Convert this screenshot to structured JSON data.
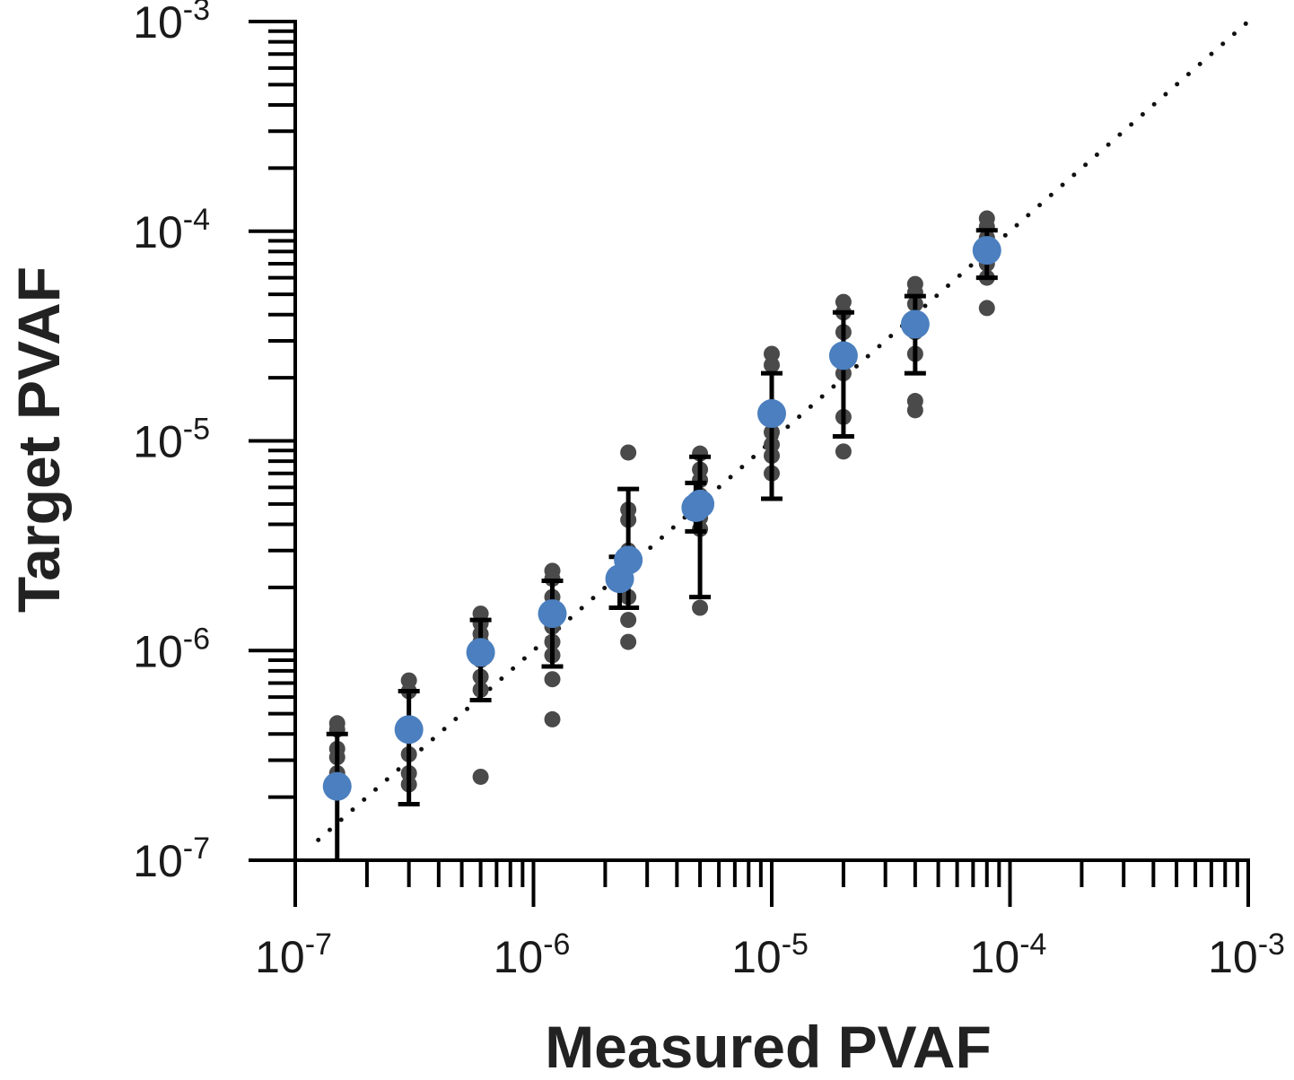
{
  "chart_data": {
    "type": "scatter",
    "title": "",
    "xlabel": "Measured PVAF",
    "ylabel": "Target PVAF",
    "x_scale": "log",
    "y_scale": "log",
    "xlim": [
      1e-07,
      0.001
    ],
    "ylim": [
      1e-07,
      0.001
    ],
    "grid": false,
    "x_ticks": [
      {
        "value": 1e-07,
        "base": "10",
        "exp": "-7"
      },
      {
        "value": 1e-06,
        "base": "10",
        "exp": "-6"
      },
      {
        "value": 1e-05,
        "base": "10",
        "exp": "-5"
      },
      {
        "value": 0.0001,
        "base": "10",
        "exp": "-4"
      },
      {
        "value": 0.001,
        "base": "10",
        "exp": "-3"
      }
    ],
    "y_ticks": [
      {
        "value": 1e-07,
        "base": "10",
        "exp": "-7"
      },
      {
        "value": 1e-06,
        "base": "10",
        "exp": "-6"
      },
      {
        "value": 1e-05,
        "base": "10",
        "exp": "-5"
      },
      {
        "value": 0.0001,
        "base": "10",
        "exp": "-4"
      },
      {
        "value": 0.001,
        "base": "10",
        "exp": "-3"
      }
    ],
    "identity_line": {
      "from": [
        1.25e-07,
        1.25e-07
      ],
      "to": [
        0.001,
        0.001
      ],
      "style": "dotted"
    },
    "colors": {
      "mean": "#4b7fbf",
      "replicate": "#4a4a4a",
      "error_bar": "#000000",
      "axis": "#000000",
      "identity_line": "#111111"
    },
    "series": [
      {
        "role": "replicates",
        "points": [
          {
            "x": 1.5e-07,
            "y": 4.5e-07
          },
          {
            "x": 1.5e-07,
            "y": 4.2e-07
          },
          {
            "x": 1.5e-07,
            "y": 3.4e-07
          },
          {
            "x": 1.5e-07,
            "y": 3.1e-07
          },
          {
            "x": 1.5e-07,
            "y": 2.6e-07
          },
          {
            "x": 3e-07,
            "y": 7.2e-07
          },
          {
            "x": 3e-07,
            "y": 6.4e-07
          },
          {
            "x": 3e-07,
            "y": 4.4e-07
          },
          {
            "x": 3e-07,
            "y": 3.2e-07
          },
          {
            "x": 3e-07,
            "y": 2.6e-07
          },
          {
            "x": 3e-07,
            "y": 2.3e-07
          },
          {
            "x": 6e-07,
            "y": 1.5e-06
          },
          {
            "x": 6e-07,
            "y": 1.35e-06
          },
          {
            "x": 6e-07,
            "y": 1.2e-06
          },
          {
            "x": 6e-07,
            "y": 1.1e-06
          },
          {
            "x": 6e-07,
            "y": 9e-07
          },
          {
            "x": 6e-07,
            "y": 7.5e-07
          },
          {
            "x": 6e-07,
            "y": 6.5e-07
          },
          {
            "x": 6e-07,
            "y": 2.5e-07
          },
          {
            "x": 1.2e-06,
            "y": 2.4e-06
          },
          {
            "x": 1.2e-06,
            "y": 2.2e-06
          },
          {
            "x": 1.2e-06,
            "y": 1.8e-06
          },
          {
            "x": 1.2e-06,
            "y": 1.3e-06
          },
          {
            "x": 1.2e-06,
            "y": 1.1e-06
          },
          {
            "x": 1.2e-06,
            "y": 9.5e-07
          },
          {
            "x": 1.2e-06,
            "y": 7.3e-07
          },
          {
            "x": 1.2e-06,
            "y": 4.7e-07
          },
          {
            "x": 2.5e-06,
            "y": 8.8e-06
          },
          {
            "x": 2.5e-06,
            "y": 4.7e-06
          },
          {
            "x": 2.5e-06,
            "y": 4.2e-06
          },
          {
            "x": 2.5e-06,
            "y": 3e-06
          },
          {
            "x": 2.5e-06,
            "y": 1.8e-06
          },
          {
            "x": 2.5e-06,
            "y": 1.4e-06
          },
          {
            "x": 2.5e-06,
            "y": 1.1e-06
          },
          {
            "x": 5e-06,
            "y": 8.7e-06
          },
          {
            "x": 5e-06,
            "y": 7.3e-06
          },
          {
            "x": 5e-06,
            "y": 6.5e-06
          },
          {
            "x": 5e-06,
            "y": 5.5e-06
          },
          {
            "x": 5e-06,
            "y": 4.3e-06
          },
          {
            "x": 5e-06,
            "y": 3.8e-06
          },
          {
            "x": 5e-06,
            "y": 1.6e-06
          },
          {
            "x": 1e-05,
            "y": 2.6e-05
          },
          {
            "x": 1e-05,
            "y": 2.3e-05
          },
          {
            "x": 1e-05,
            "y": 1.45e-05
          },
          {
            "x": 1e-05,
            "y": 1.1e-05
          },
          {
            "x": 1e-05,
            "y": 9.6e-06
          },
          {
            "x": 1e-05,
            "y": 8.5e-06
          },
          {
            "x": 1e-05,
            "y": 7e-06
          },
          {
            "x": 2e-05,
            "y": 4.6e-05
          },
          {
            "x": 2e-05,
            "y": 4.1e-05
          },
          {
            "x": 2e-05,
            "y": 3.3e-05
          },
          {
            "x": 2e-05,
            "y": 2.7e-05
          },
          {
            "x": 2e-05,
            "y": 2.1e-05
          },
          {
            "x": 2e-05,
            "y": 1.3e-05
          },
          {
            "x": 2e-05,
            "y": 8.9e-06
          },
          {
            "x": 4e-05,
            "y": 5.6e-05
          },
          {
            "x": 4e-05,
            "y": 5.1e-05
          },
          {
            "x": 4e-05,
            "y": 4.5e-05
          },
          {
            "x": 4e-05,
            "y": 3.3e-05
          },
          {
            "x": 4e-05,
            "y": 2.6e-05
          },
          {
            "x": 4e-05,
            "y": 1.55e-05
          },
          {
            "x": 4e-05,
            "y": 1.4e-05
          },
          {
            "x": 8e-05,
            "y": 0.000115
          },
          {
            "x": 8e-05,
            "y": 0.000105
          },
          {
            "x": 8e-05,
            "y": 9.3e-05
          },
          {
            "x": 8e-05,
            "y": 7e-05
          },
          {
            "x": 8e-05,
            "y": 6e-05
          },
          {
            "x": 8e-05,
            "y": 4.3e-05
          }
        ]
      },
      {
        "role": "mean_sd",
        "points": [
          {
            "x": 1.5e-07,
            "y": 2.25e-07,
            "low": 1e-07,
            "high": 4e-07
          },
          {
            "x": 3e-07,
            "y": 4.2e-07,
            "low": 1.85e-07,
            "high": 6.4e-07
          },
          {
            "x": 6e-07,
            "y": 9.8e-07,
            "low": 5.8e-07,
            "high": 1.4e-06
          },
          {
            "x": 1.2e-06,
            "y": 1.5e-06,
            "low": 8.4e-07,
            "high": 2.15e-06
          },
          {
            "x": 2.5e-06,
            "y": 2.7e-06,
            "low": 1.6e-06,
            "high": 5.9e-06
          },
          {
            "x": 2.3e-06,
            "y": 2.2e-06,
            "low": 1.6e-06,
            "high": 2.8e-06
          },
          {
            "x": 5e-06,
            "y": 5e-06,
            "low": 1.8e-06,
            "high": 8.4e-06
          },
          {
            "x": 4.8e-06,
            "y": 4.8e-06,
            "low": 3.7e-06,
            "high": 6.3e-06
          },
          {
            "x": 1e-05,
            "y": 1.35e-05,
            "low": 5.3e-06,
            "high": 2.1e-05
          },
          {
            "x": 2e-05,
            "y": 2.55e-05,
            "low": 1.05e-05,
            "high": 4.1e-05
          },
          {
            "x": 4e-05,
            "y": 3.6e-05,
            "low": 2.1e-05,
            "high": 4.9e-05
          },
          {
            "x": 8e-05,
            "y": 8.1e-05,
            "low": 6e-05,
            "high": 0.000101
          }
        ]
      }
    ]
  }
}
